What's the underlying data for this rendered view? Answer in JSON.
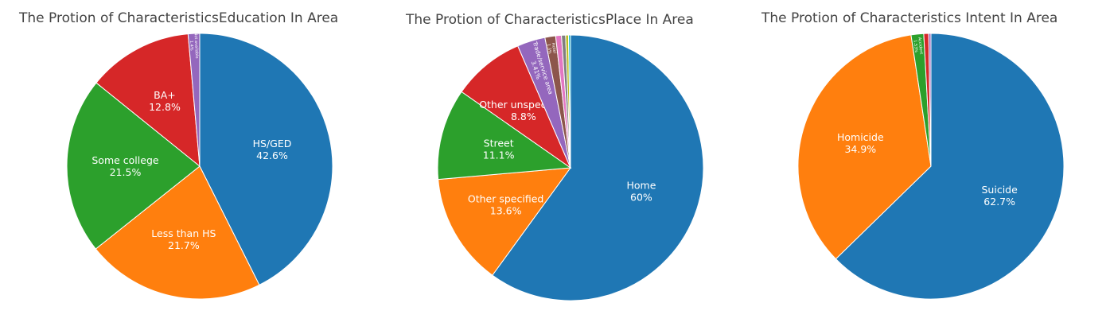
{
  "colors": [
    "#1f77b4",
    "#ff7f0e",
    "#2ca02c",
    "#d62728",
    "#9467bd",
    "#8c564b",
    "#e377c2",
    "#7f7f7f",
    "#bcbd22",
    "#17becf"
  ],
  "chart_data": [
    {
      "type": "pie",
      "title": "The Protion of CharacteristicsEducation In Area",
      "slices": [
        {
          "label": "HS/GED",
          "value": 42.6,
          "text": "42.6%"
        },
        {
          "label": "Less than HS",
          "value": 21.7,
          "text": "21.7%"
        },
        {
          "label": "Some college",
          "value": 21.5,
          "text": "21.5%"
        },
        {
          "label": "BA+",
          "value": 12.8,
          "text": "12.8%"
        },
        {
          "label": "Not available",
          "value": 1.4,
          "text": "1.4%"
        }
      ]
    },
    {
      "type": "pie",
      "title": "The Protion of CharacteristicsPlace In Area",
      "slices": [
        {
          "label": "Home",
          "value": 60,
          "text": "60%"
        },
        {
          "label": "Other specified",
          "value": 13.6,
          "text": "13.6%"
        },
        {
          "label": "Street",
          "value": 11.1,
          "text": "11.1%"
        },
        {
          "label": "Other unspecified",
          "value": 8.8,
          "text": "8.8%"
        },
        {
          "label": "Trade/service area",
          "value": 3.41,
          "text": "3.41%"
        },
        {
          "label": "Hotel",
          "value": 1.3,
          "text": "1.3%"
        },
        {
          "label": "",
          "value": 0.7,
          "text": ""
        },
        {
          "label": "",
          "value": 0.5,
          "text": ""
        },
        {
          "label": "",
          "value": 0.35,
          "text": ""
        },
        {
          "label": "",
          "value": 0.24,
          "text": ""
        }
      ]
    },
    {
      "type": "pie",
      "title": "The Protion of Characteristics Intent In Area",
      "slices": [
        {
          "label": "Suicide",
          "value": 62.7,
          "text": "62.7%"
        },
        {
          "label": "Homicide",
          "value": 34.9,
          "text": "34.9%"
        },
        {
          "label": "Accident",
          "value": 1.53,
          "text": "1.53%"
        },
        {
          "label": "",
          "value": 0.6,
          "text": ""
        },
        {
          "label": "",
          "value": 0.27,
          "text": ""
        }
      ]
    }
  ]
}
